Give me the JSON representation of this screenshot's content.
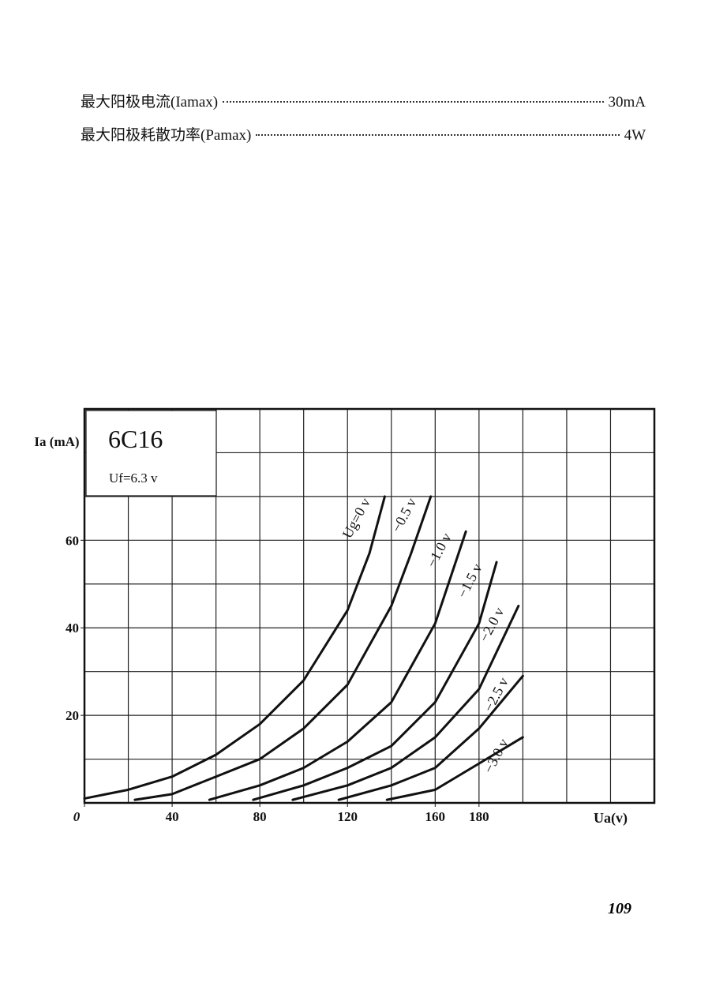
{
  "specs": [
    {
      "label": "最大阳极电流(Iamax)",
      "value": "30mA"
    },
    {
      "label": "最大阳极耗散功率(Pamax)",
      "value": "4W"
    }
  ],
  "chart_data": {
    "type": "line",
    "title": "6C16",
    "subtitle": "Uf=6.3 v",
    "y_label": "Ia (mA)",
    "x_label": "Ua(v)",
    "xlim": [
      0,
      260
    ],
    "ylim": [
      0,
      90
    ],
    "xticks": [
      0,
      40,
      80,
      120,
      160,
      180
    ],
    "yticks": [
      20,
      40,
      60
    ],
    "xgrid": [
      0,
      20,
      40,
      60,
      80,
      100,
      120,
      140,
      160,
      180,
      200,
      220,
      240,
      260
    ],
    "ygrid": [
      10,
      20,
      30,
      40,
      50,
      60,
      70,
      80,
      90
    ],
    "grid": true,
    "series": [
      {
        "name": "Ug=0 v",
        "color": "#111",
        "x": [
          0,
          20,
          40,
          60,
          80,
          100,
          120,
          130,
          137
        ],
        "values": [
          1,
          3,
          6,
          11,
          18,
          28,
          44,
          57,
          70
        ]
      },
      {
        "name": "−0.5 v",
        "color": "#111",
        "x": [
          23,
          40,
          60,
          80,
          100,
          120,
          140,
          149,
          158
        ],
        "values": [
          0.7,
          2,
          6,
          10,
          17,
          27,
          45,
          57,
          70
        ]
      },
      {
        "name": "−1.0 v",
        "color": "#111",
        "x": [
          57,
          80,
          100,
          120,
          140,
          160,
          174
        ],
        "values": [
          0.7,
          4,
          8,
          14,
          23,
          41,
          62
        ]
      },
      {
        "name": "−1.5 v",
        "color": "#111",
        "x": [
          77,
          100,
          120,
          140,
          160,
          180,
          188
        ],
        "values": [
          0.7,
          4,
          8,
          13,
          23,
          41,
          55
        ]
      },
      {
        "name": "−2.0 v",
        "color": "#111",
        "x": [
          95,
          120,
          140,
          160,
          180,
          198
        ],
        "values": [
          0.7,
          4,
          8,
          15,
          26,
          45
        ]
      },
      {
        "name": "−2.5 v",
        "color": "#111",
        "x": [
          116,
          140,
          160,
          180,
          200
        ],
        "values": [
          0.7,
          4,
          8,
          17,
          29
        ]
      },
      {
        "name": "−3.0 v",
        "color": "#111",
        "x": [
          138,
          160,
          180,
          200
        ],
        "values": [
          0.7,
          3,
          9,
          15
        ]
      }
    ]
  },
  "page_number": "109"
}
